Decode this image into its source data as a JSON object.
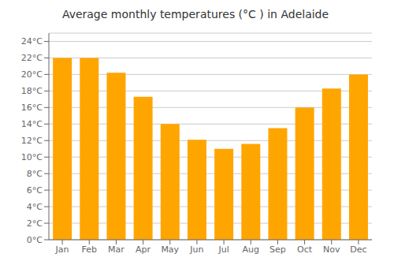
{
  "chart_data": {
    "type": "bar",
    "title": "Average monthly temperatures (°C ) in Adelaide",
    "categories": [
      "Jan",
      "Feb",
      "Mar",
      "Apr",
      "May",
      "Jun",
      "Jul",
      "Aug",
      "Sep",
      "Oct",
      "Nov",
      "Dec"
    ],
    "values": [
      22,
      22,
      20.2,
      17.3,
      14.0,
      12.1,
      11.0,
      11.6,
      13.5,
      16.0,
      18.3,
      20.0
    ],
    "color": "#FFA500",
    "ylim": [
      0,
      25
    ],
    "yticks": [
      {
        "value": 0,
        "label": "0°C"
      },
      {
        "value": 2,
        "label": "2°C"
      },
      {
        "value": 4,
        "label": "4°C"
      },
      {
        "value": 6,
        "label": "6°C"
      },
      {
        "value": 8,
        "label": "8°C"
      },
      {
        "value": 10,
        "label": "10°C"
      },
      {
        "value": 12,
        "label": "12°C"
      },
      {
        "value": 14,
        "label": "14°C"
      },
      {
        "value": 16,
        "label": "16°C"
      },
      {
        "value": 18,
        "label": "18°C"
      },
      {
        "value": 20,
        "label": "20°C"
      },
      {
        "value": 22,
        "label": "22°C"
      },
      {
        "value": 24,
        "label": "24°C"
      }
    ],
    "grid": true
  }
}
